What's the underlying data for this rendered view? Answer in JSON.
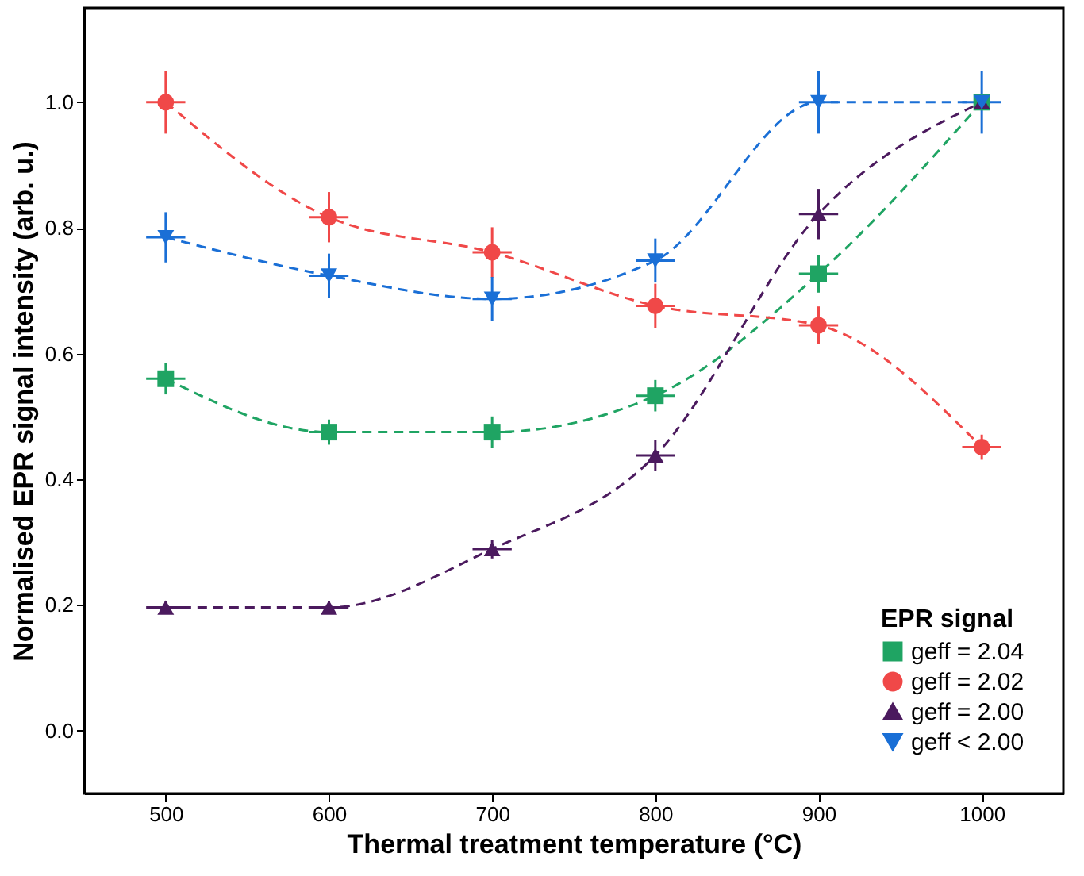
{
  "chart_data": {
    "type": "line",
    "xlabel": "Thermal treatment temperature (°C)",
    "ylabel": "Normalised EPR signal intensity (arb. u.)",
    "legend_title": "EPR signal",
    "legend": "bottom right",
    "line_style": "dashed",
    "x": [
      500,
      600,
      700,
      800,
      900,
      1000
    ],
    "xlim": [
      450,
      1050
    ],
    "xticks": [
      500,
      600,
      700,
      800,
      900,
      1000
    ],
    "ylim": [
      -0.1,
      1.15
    ],
    "yticks": [
      {
        "value": 0,
        "label": "0.0"
      },
      0.2,
      0.4,
      0.6,
      0.8,
      {
        "value": 1,
        "label": "1.0"
      }
    ],
    "series": [
      {
        "name": "geff = 2.04",
        "color": "#1fa463",
        "marker": "square",
        "values": [
          0.56,
          0.475,
          0.475,
          0.533,
          0.727,
          1.0
        ],
        "errors": [
          0.025,
          0.02,
          0.025,
          0.025,
          0.03,
          null
        ],
        "xerrors": [
          12,
          12,
          12,
          12,
          12,
          null
        ]
      },
      {
        "name": "geff = 2.02",
        "color": "#f04848",
        "marker": "circle",
        "values": [
          1.0,
          0.817,
          0.761,
          0.676,
          0.645,
          0.451
        ],
        "errors": [
          0.05,
          0.04,
          0.04,
          0.035,
          0.03,
          0.02
        ],
        "xerrors": [
          12,
          12,
          12,
          12,
          12,
          12
        ]
      },
      {
        "name": "geff = 2.00",
        "color": "#4b1a5e",
        "marker": "triangle",
        "values": [
          0.196,
          0.196,
          0.289,
          0.438,
          0.822,
          1.0
        ],
        "errors": [
          0.01,
          0.01,
          0.015,
          0.025,
          0.04,
          null
        ],
        "xerrors": [
          12,
          12,
          12,
          12,
          12,
          null
        ]
      },
      {
        "name": "geff < 2.00",
        "color": "#1a6fd6",
        "marker": "triangle-down",
        "values": [
          0.785,
          0.724,
          0.687,
          0.748,
          1.0,
          1.0
        ],
        "errors": [
          0.04,
          0.035,
          0.035,
          0.035,
          0.05,
          0.05
        ],
        "xerrors": [
          12,
          12,
          12,
          12,
          12,
          12
        ]
      }
    ]
  }
}
